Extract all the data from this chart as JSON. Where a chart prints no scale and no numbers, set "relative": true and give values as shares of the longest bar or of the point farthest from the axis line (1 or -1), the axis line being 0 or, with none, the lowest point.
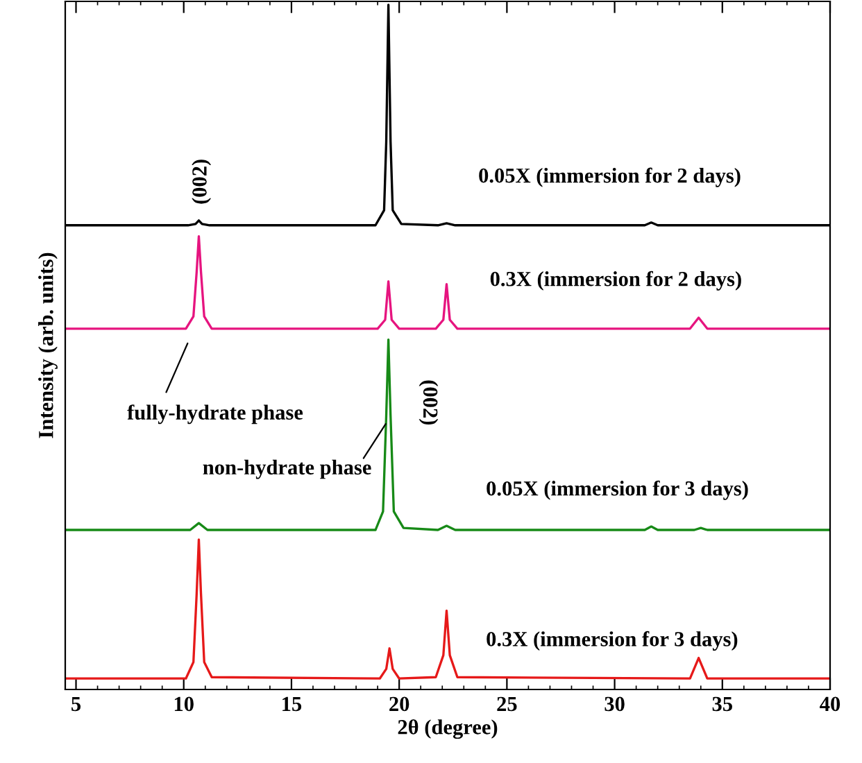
{
  "chart_data": {
    "type": "line",
    "relative": true,
    "xlabel": "2θ (degree)",
    "ylabel": "Intensity (arb. units)",
    "xlim": [
      4.5,
      40
    ],
    "xticks": [
      5,
      10,
      15,
      20,
      25,
      30,
      35,
      40
    ],
    "grid": false,
    "marker": "none",
    "line_style": "solid",
    "series": [
      {
        "name": "0.05X (immersion for 2 days)",
        "color": "#000000",
        "x": [
          4.5,
          10.2,
          10.55,
          10.7,
          10.85,
          11.2,
          18.9,
          19.3,
          19.4,
          19.5,
          19.6,
          19.7,
          20.1,
          21.8,
          22.2,
          22.6,
          31.4,
          31.7,
          32.0,
          40
        ],
        "values": [
          0.678,
          0.678,
          0.68,
          0.685,
          0.68,
          0.678,
          0.678,
          0.7,
          0.8,
          1.0,
          0.8,
          0.7,
          0.68,
          0.678,
          0.681,
          0.678,
          0.678,
          0.682,
          0.678,
          0.678
        ]
      },
      {
        "name": "0.3X (immersion for 2 days)",
        "color": "#e6147f",
        "x": [
          4.5,
          10.1,
          10.45,
          10.6,
          10.7,
          10.8,
          10.95,
          11.3,
          19.0,
          19.35,
          19.5,
          19.65,
          20.0,
          21.7,
          22.05,
          22.2,
          22.35,
          22.7,
          33.5,
          33.9,
          34.3,
          40
        ],
        "values": [
          0.527,
          0.527,
          0.545,
          0.61,
          0.662,
          0.61,
          0.545,
          0.527,
          0.527,
          0.54,
          0.596,
          0.54,
          0.527,
          0.527,
          0.54,
          0.592,
          0.54,
          0.527,
          0.527,
          0.543,
          0.527,
          0.527
        ]
      },
      {
        "name": "0.05X (immersion for 3 days)",
        "color": "#178a17",
        "x": [
          4.5,
          10.3,
          10.7,
          11.1,
          18.9,
          19.25,
          19.4,
          19.5,
          19.6,
          19.75,
          20.2,
          21.8,
          22.2,
          22.6,
          31.4,
          31.7,
          32.0,
          33.7,
          34.0,
          34.3,
          40
        ],
        "values": [
          0.233,
          0.233,
          0.243,
          0.233,
          0.233,
          0.26,
          0.4,
          0.511,
          0.4,
          0.26,
          0.236,
          0.233,
          0.239,
          0.233,
          0.233,
          0.238,
          0.233,
          0.233,
          0.236,
          0.233,
          0.233
        ]
      },
      {
        "name": "0.3X (immersion for 3 days)",
        "color": "#e61919",
        "x": [
          4.5,
          10.1,
          10.45,
          10.6,
          10.7,
          10.8,
          10.95,
          11.3,
          19.1,
          19.4,
          19.55,
          19.7,
          20.0,
          21.7,
          22.05,
          22.2,
          22.35,
          22.7,
          33.5,
          33.9,
          34.3,
          40
        ],
        "values": [
          0.016,
          0.016,
          0.04,
          0.14,
          0.219,
          0.14,
          0.04,
          0.018,
          0.016,
          0.03,
          0.06,
          0.03,
          0.016,
          0.018,
          0.05,
          0.115,
          0.05,
          0.018,
          0.016,
          0.046,
          0.016,
          0.016
        ]
      }
    ],
    "annotations": [
      "(002)",
      "(002)",
      "fully-hydrate phase",
      "non-hydrate phase"
    ]
  }
}
